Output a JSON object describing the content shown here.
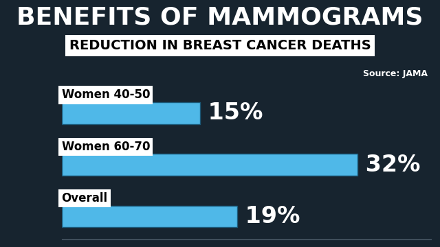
{
  "chart_data": {
    "type": "bar",
    "orientation": "horizontal",
    "title": "BENEFITS OF MAMMOGRAMS",
    "subtitle": "REDUCTION IN BREAST CANCER DEATHS",
    "annotations": [
      "Source: JAMA"
    ],
    "categories": [
      "Women 40-50",
      "Women 60-70",
      "Overall"
    ],
    "values": [
      15,
      32,
      19
    ],
    "value_labels": [
      "15%",
      "32%",
      "19%"
    ],
    "color": "#4fb8e8",
    "xlim": [
      0,
      40
    ],
    "data_labels": true,
    "tick_labels": false
  }
}
